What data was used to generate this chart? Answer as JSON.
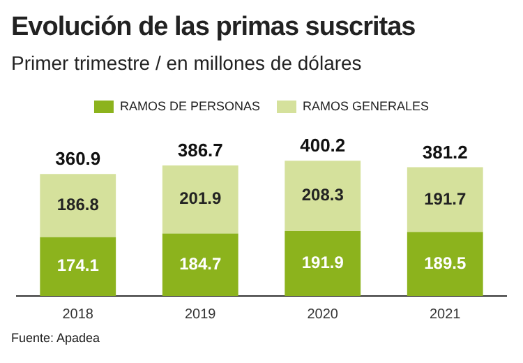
{
  "chart_data": {
    "type": "bar",
    "title": "Evolución de las primas suscritas",
    "subtitle": "Primer trimestre / en millones de dólares",
    "categories": [
      "2018",
      "2019",
      "2020",
      "2021"
    ],
    "stacked": true,
    "data_labels": true,
    "legend": "top",
    "grid": false,
    "series": [
      {
        "name": "RAMOS DE PERSONAS",
        "color": "#8cb31d",
        "values": [
          174.1,
          184.7,
          191.9,
          189.5
        ]
      },
      {
        "name": "RAMOS GENERALES",
        "color": "#d5e19c",
        "values": [
          186.8,
          201.9,
          208.3,
          191.7
        ]
      }
    ],
    "totals": [
      "360.9",
      "386.7",
      "400.2",
      "381.2"
    ],
    "annotations": [
      "Fuente: Apadea"
    ]
  }
}
